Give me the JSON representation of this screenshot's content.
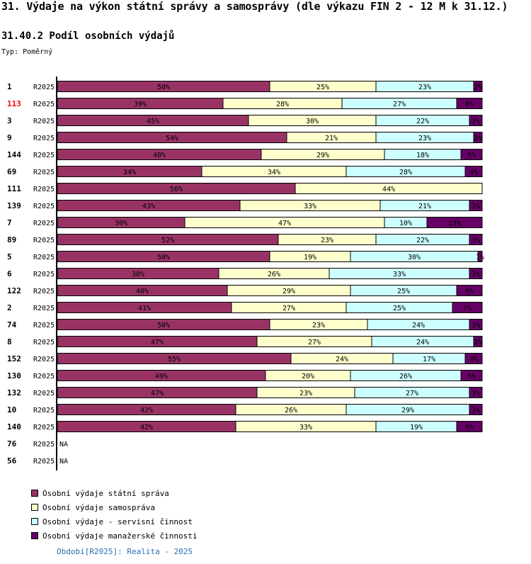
{
  "header": {
    "title": "31. Výdaje na výkon státní správy a samosprávy (dle výkazu FIN 2 - 12 M k 31.12.)",
    "subtitle": "31.40.2 Podíl osobních výdajů",
    "type_label": "Typ: Poměrný"
  },
  "footer": {
    "period_text": "Období[R2025]: Realita - 2025"
  },
  "chart_data": {
    "type": "bar",
    "orientation": "horizontal",
    "stacked": true,
    "normalized_percent": true,
    "title": "31.40.2 Podíl osobních výdajů",
    "xlim": [
      0,
      100
    ],
    "value_suffix": "%",
    "highlight_color": "#ff0000",
    "na_text": "NA",
    "categories": [
      {
        "id": "1",
        "period": "R2025",
        "highlight": false
      },
      {
        "id": "113",
        "period": "R2025",
        "highlight": true
      },
      {
        "id": "3",
        "period": "R2025",
        "highlight": false
      },
      {
        "id": "9",
        "period": "R2025",
        "highlight": false
      },
      {
        "id": "144",
        "period": "R2025",
        "highlight": false
      },
      {
        "id": "69",
        "period": "R2025",
        "highlight": false
      },
      {
        "id": "111",
        "period": "R2025",
        "highlight": false
      },
      {
        "id": "139",
        "period": "R2025",
        "highlight": false
      },
      {
        "id": "7",
        "period": "R2025",
        "highlight": false
      },
      {
        "id": "89",
        "period": "R2025",
        "highlight": false
      },
      {
        "id": "5",
        "period": "R2025",
        "highlight": false
      },
      {
        "id": "6",
        "period": "R2025",
        "highlight": false
      },
      {
        "id": "122",
        "period": "R2025",
        "highlight": false
      },
      {
        "id": "2",
        "period": "R2025",
        "highlight": false
      },
      {
        "id": "74",
        "period": "R2025",
        "highlight": false
      },
      {
        "id": "8",
        "period": "R2025",
        "highlight": false
      },
      {
        "id": "152",
        "period": "R2025",
        "highlight": false
      },
      {
        "id": "130",
        "period": "R2025",
        "highlight": false
      },
      {
        "id": "132",
        "period": "R2025",
        "highlight": false
      },
      {
        "id": "10",
        "period": "R2025",
        "highlight": false
      },
      {
        "id": "140",
        "period": "R2025",
        "highlight": false
      },
      {
        "id": "76",
        "period": "R2025",
        "highlight": false
      },
      {
        "id": "56",
        "period": "R2025",
        "highlight": false
      }
    ],
    "series": [
      {
        "name": "Osobní výdaje státní správa",
        "color": "#993366",
        "values": [
          50,
          39,
          45,
          54,
          48,
          34,
          56,
          43,
          30,
          52,
          50,
          38,
          40,
          41,
          50,
          47,
          55,
          49,
          47,
          42,
          42,
          null,
          null
        ]
      },
      {
        "name": "Osobní výdaje samospráva",
        "color": "#ffffcc",
        "values": [
          25,
          28,
          30,
          21,
          29,
          34,
          44,
          33,
          47,
          23,
          19,
          26,
          29,
          27,
          23,
          27,
          24,
          20,
          23,
          26,
          33,
          null,
          null
        ]
      },
      {
        "name": "Osobní výdaje - servisní činnost",
        "color": "#ccffff",
        "values": [
          23,
          27,
          22,
          23,
          18,
          28,
          0,
          21,
          10,
          22,
          30,
          33,
          25,
          25,
          24,
          24,
          17,
          26,
          27,
          29,
          19,
          null,
          null
        ]
      },
      {
        "name": "Osobní výdaje manažerské činnosti",
        "color": "#660066",
        "values": [
          2,
          6,
          3,
          2,
          5,
          4,
          0,
          3,
          13,
          3,
          1,
          3,
          6,
          7,
          3,
          2,
          4,
          5,
          3,
          3,
          6,
          null,
          null
        ]
      }
    ]
  }
}
